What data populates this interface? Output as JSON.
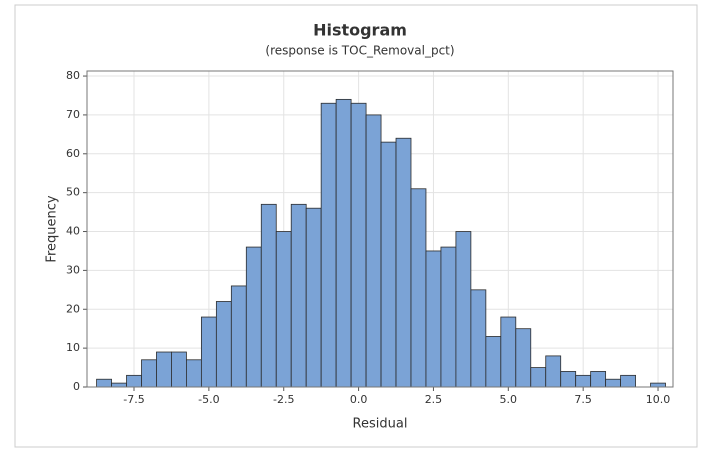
{
  "chart_data": {
    "type": "histogram",
    "title": "Histogram",
    "subtitle": "(response is TOC_Removal_pct)",
    "x_label": "Residual",
    "y_label": "Frequency",
    "color": "#7ba3d6",
    "grid": true,
    "bins": [
      -8.75,
      -8.25,
      -7.75,
      -7.25,
      -6.75,
      -6.25,
      -5.75,
      -5.25,
      -4.75,
      -4.25,
      -3.75,
      -3.25,
      -2.75,
      -2.25,
      -1.75,
      -1.25,
      -0.75,
      -0.25,
      0.25,
      0.75,
      1.25,
      1.75,
      2.25,
      2.75,
      3.25,
      3.75,
      4.25,
      4.75,
      5.25,
      5.75,
      6.25,
      6.75,
      7.25,
      7.75,
      8.25,
      8.75,
      9.25,
      9.75,
      10.25
    ],
    "values": [
      2,
      1,
      3,
      7,
      9,
      9,
      7,
      18,
      22,
      26,
      36,
      47,
      40,
      47,
      46,
      73,
      74,
      73,
      70,
      63,
      64,
      51,
      35,
      36,
      40,
      25,
      13,
      18,
      15,
      5,
      8,
      4,
      3,
      4,
      2,
      3,
      0,
      1
    ],
    "xlim": [
      -9.07,
      10.5
    ],
    "ylim": [
      0,
      81.3
    ],
    "xticks": [
      -7.5,
      {
        "value": -5,
        "label": "-5.0"
      },
      -2.5,
      {
        "value": 0,
        "label": "0.0"
      },
      2.5,
      {
        "value": 5,
        "label": "5.0"
      },
      7.5,
      {
        "value": 10,
        "label": "10.0"
      }
    ],
    "yticks": [
      0,
      10,
      20,
      30,
      40,
      50,
      60,
      70,
      80
    ]
  }
}
